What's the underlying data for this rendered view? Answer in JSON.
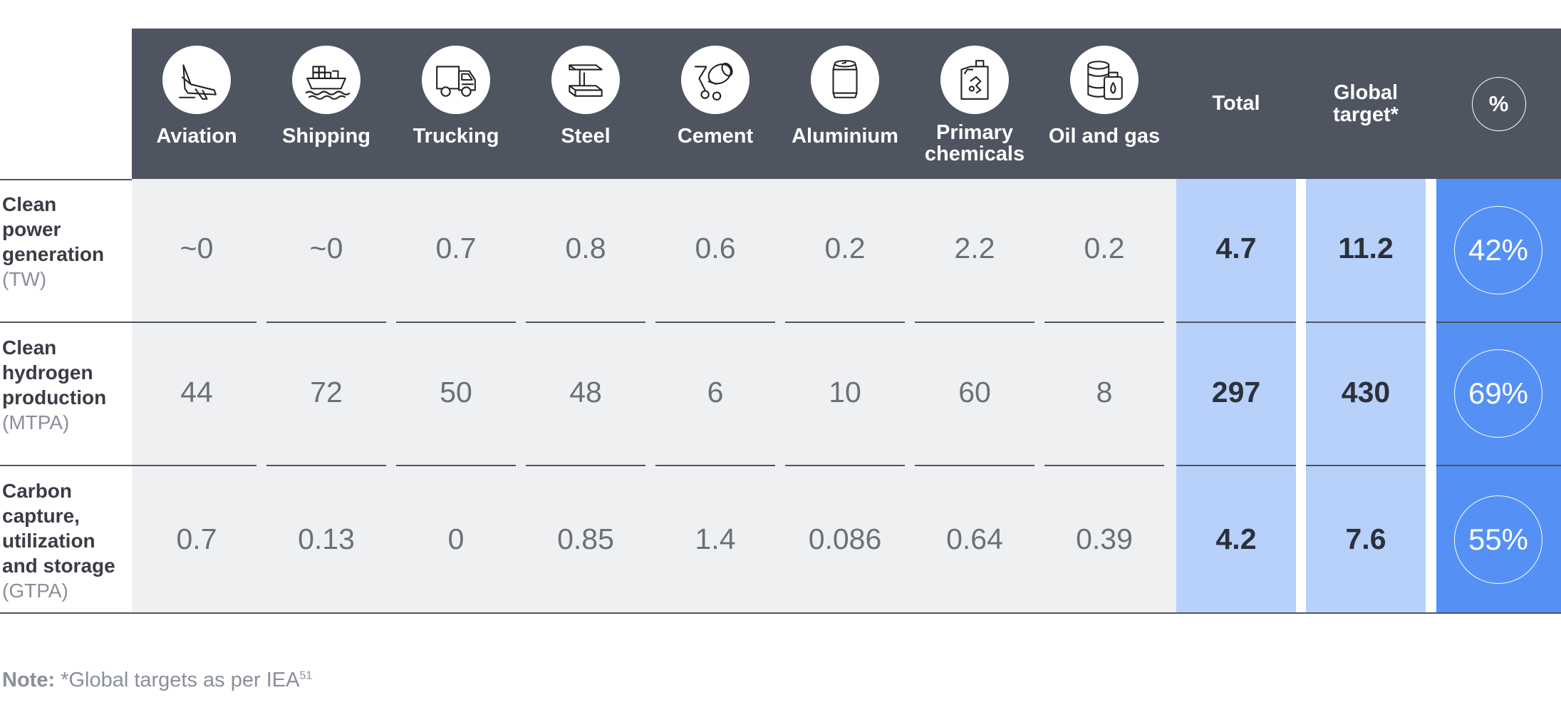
{
  "sectors": [
    {
      "label": "Aviation",
      "icon": "airplane-icon"
    },
    {
      "label": "Shipping",
      "icon": "ship-icon"
    },
    {
      "label": "Trucking",
      "icon": "truck-icon"
    },
    {
      "label": "Steel",
      "icon": "steel-beam-icon"
    },
    {
      "label": "Cement",
      "icon": "cement-mixer-icon"
    },
    {
      "label": "Aluminium",
      "icon": "can-icon"
    },
    {
      "label": "Primary chemicals",
      "icon": "chemical-canister-icon"
    },
    {
      "label": "Oil and gas",
      "icon": "oil-barrel-icon"
    }
  ],
  "headers": {
    "total": "Total",
    "global_target": "Global target*",
    "percent": "%"
  },
  "rows": [
    {
      "name": "Clean power generation",
      "unit": "(TW)",
      "values": [
        "~0",
        "~0",
        "0.7",
        "0.8",
        "0.6",
        "0.2",
        "2.2",
        "0.2"
      ],
      "total": "4.7",
      "target": "11.2",
      "percent": "42%"
    },
    {
      "name": "Clean hydrogen production",
      "unit": "(MTPA)",
      "values": [
        "44",
        "72",
        "50",
        "48",
        "6",
        "10",
        "60",
        "8"
      ],
      "total": "297",
      "target": "430",
      "percent": "69%"
    },
    {
      "name": "Carbon capture, utilization and storage",
      "unit": "(GTPA)",
      "values": [
        "0.7",
        "0.13",
        "0",
        "0.85",
        "1.4",
        "0.086",
        "0.64",
        "0.39"
      ],
      "total": "4.2",
      "target": "7.6",
      "percent": "55%"
    }
  ],
  "note": {
    "label": "Note:",
    "text": " *Global targets as per IEA",
    "sup": "51"
  },
  "colors": {
    "header": "#4f5461",
    "cell_bg": "#eff0f1",
    "total_bg": "#b7d1fb",
    "percent_bg": "#5591f5"
  }
}
